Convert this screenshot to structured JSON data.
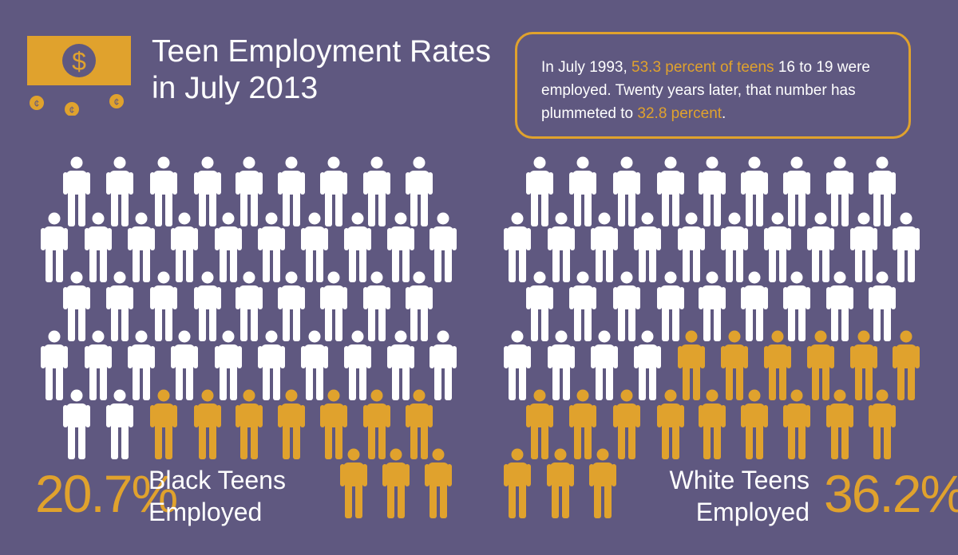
{
  "title": {
    "line1": "Teen Employment Rates",
    "line2": "in July 2013"
  },
  "callout": {
    "part1": "In July 1993, ",
    "highlight1": "53.3 percent of teens",
    "part2": " 16 to 19 were employed.  Twenty years later, that number has plummeted to ",
    "highlight2": "32.8 percent",
    "part3": "."
  },
  "black_teens": {
    "percent": "20.7%",
    "label_line1": "Black Teens",
    "label_line2": "Employed",
    "employed_rate": 20.7
  },
  "white_teens": {
    "percent": "36.2%",
    "label_line1": "White Teens",
    "label_line2": "Employed",
    "employed_rate": 36.2
  },
  "colors": {
    "background": "#5f5880",
    "accent": "#e0a22d",
    "figure_default": "#ffffff"
  },
  "icons": {
    "header": "money-bill-icon",
    "coins": "coin-icon",
    "figures": "person-icon"
  }
}
